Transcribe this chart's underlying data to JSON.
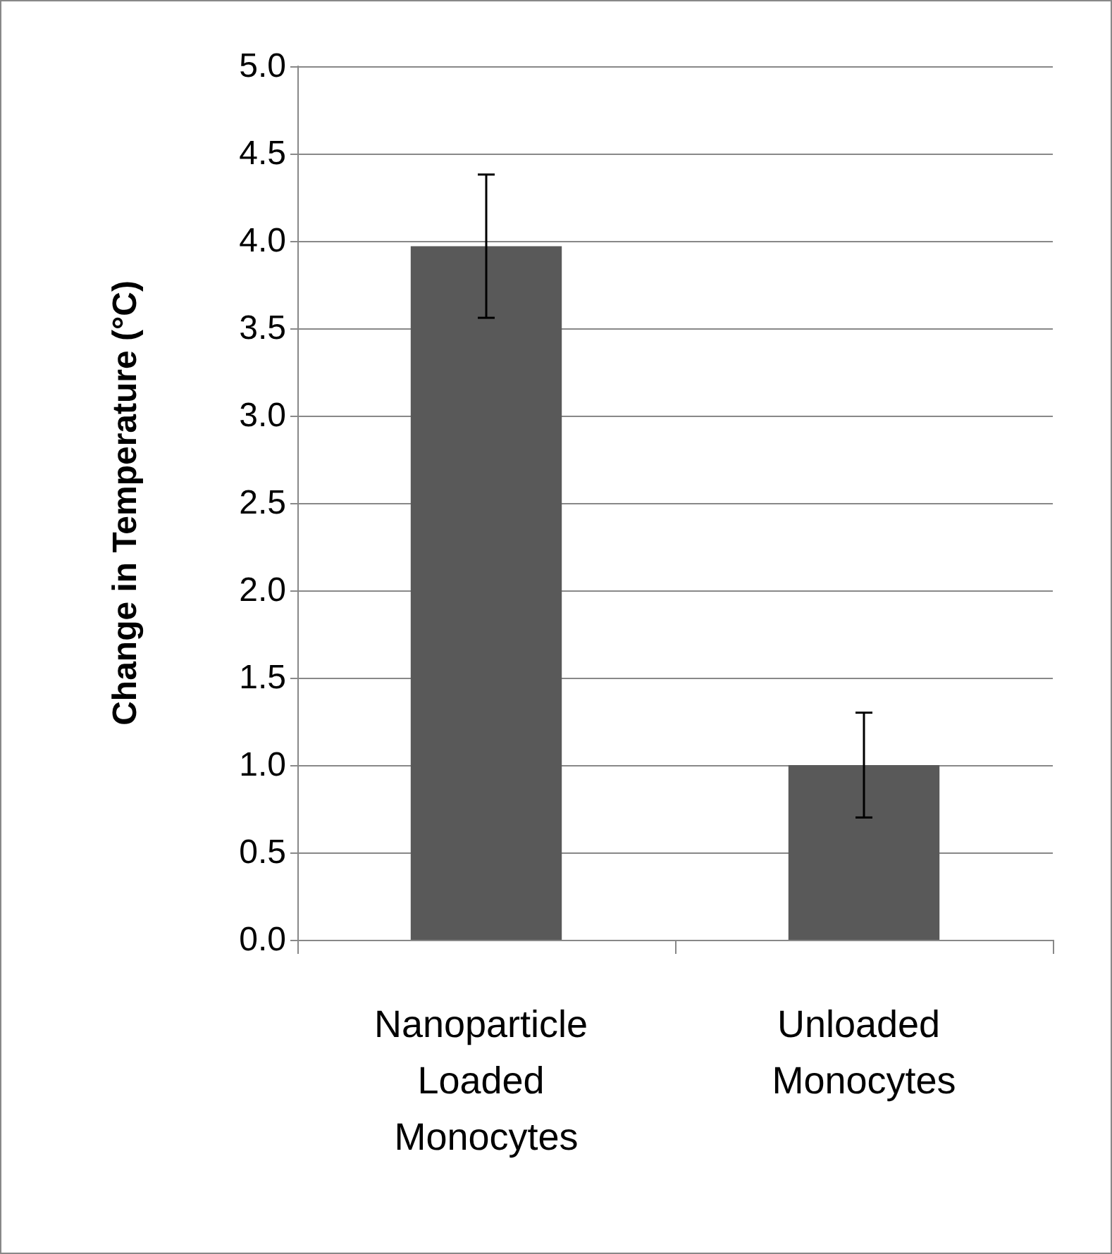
{
  "chart_data": {
    "type": "bar",
    "ylabel": "Change in Temperature (°C)",
    "categories": [
      "Nanoparticle Loaded Monocytes",
      "Unloaded Monocytes"
    ],
    "values": [
      3.97,
      1.0
    ],
    "errors": [
      0.41,
      0.3
    ],
    "color": "#595959",
    "ylim": [
      0,
      5
    ],
    "yticks": [
      {
        "value": 0,
        "label": "0.0"
      },
      0.5,
      {
        "value": 1,
        "label": "1.0"
      },
      1.5,
      {
        "value": 2,
        "label": "2.0"
      },
      2.5,
      {
        "value": 3,
        "label": "3.0"
      },
      3.5,
      {
        "value": 4,
        "label": "4.0"
      },
      4.5,
      {
        "value": 5,
        "label": "5.0"
      }
    ],
    "grid": "y"
  }
}
